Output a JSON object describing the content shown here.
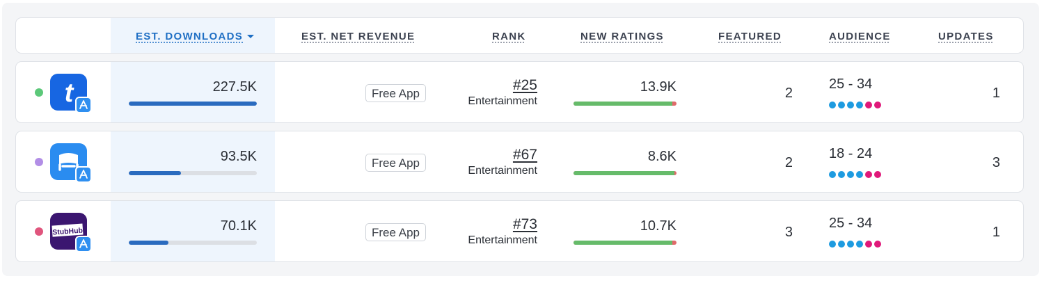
{
  "colors": {
    "accent": "#1f6fc4",
    "bar": "#2a6bbf",
    "ratings_positive": "#66bb6a",
    "ratings_negative": "#e06a6a",
    "audience_male": "#1e9be0",
    "audience_female": "#e0197a"
  },
  "header": {
    "est_downloads": "EST. DOWNLOADS",
    "est_net_revenue": "EST. NET REVENUE",
    "rank": "RANK",
    "new_ratings": "NEW RATINGS",
    "featured": "FEATURED",
    "audience": "AUDIENCE",
    "updates": "UPDATES"
  },
  "rows": [
    {
      "status_dot_color": "#5cc879",
      "app_icon": "ticketmaster-t-icon",
      "store_badge_icon": "app-store-icon",
      "downloads": "227.5K",
      "downloads_fraction": 1.0,
      "revenue": "Free App",
      "rank": "#25",
      "category": "Entertainment",
      "new_ratings": "13.9K",
      "ratings_positive_fraction": 0.96,
      "featured": "2",
      "audience": "25 - 34",
      "audience_dots": [
        "#1e9be0",
        "#1e9be0",
        "#1e9be0",
        "#1e9be0",
        "#e0197a",
        "#e0197a"
      ],
      "updates": "1"
    },
    {
      "status_dot_color": "#b28ee6",
      "app_icon": "seatgeek-chair-icon",
      "store_badge_icon": "app-store-icon",
      "downloads": "93.5K",
      "downloads_fraction": 0.41,
      "revenue": "Free App",
      "rank": "#67",
      "category": "Entertainment",
      "new_ratings": "8.6K",
      "ratings_positive_fraction": 0.98,
      "featured": "2",
      "audience": "18 - 24",
      "audience_dots": [
        "#1e9be0",
        "#1e9be0",
        "#1e9be0",
        "#1e9be0",
        "#e0197a",
        "#e0197a"
      ],
      "updates": "3"
    },
    {
      "status_dot_color": "#e0557d",
      "app_icon": "stubhub-logo-icon",
      "store_badge_icon": "app-store-icon",
      "app_logo_text": "StubHub",
      "downloads": "70.1K",
      "downloads_fraction": 0.31,
      "revenue": "Free App",
      "rank": "#73",
      "category": "Entertainment",
      "new_ratings": "10.7K",
      "ratings_positive_fraction": 0.96,
      "featured": "3",
      "audience": "25 - 34",
      "audience_dots": [
        "#1e9be0",
        "#1e9be0",
        "#1e9be0",
        "#1e9be0",
        "#e0197a",
        "#e0197a"
      ],
      "updates": "1"
    }
  ]
}
